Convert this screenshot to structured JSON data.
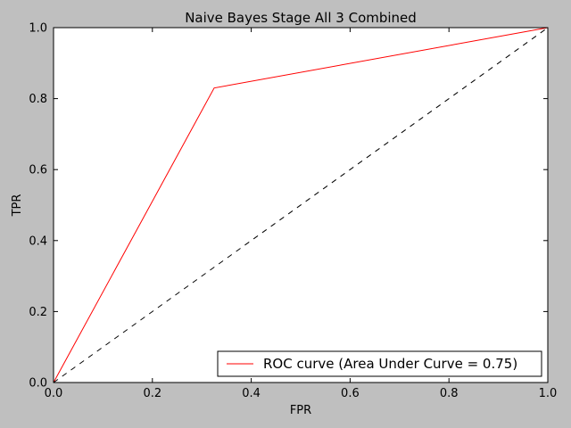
{
  "chart_data": {
    "type": "line",
    "title": "Naive Bayes Stage All 3 Combined",
    "xlabel": "FPR",
    "ylabel": "TPR",
    "xlim": [
      0,
      1
    ],
    "ylim": [
      0,
      1
    ],
    "xticks": [
      0.0,
      0.2,
      0.4,
      0.6,
      0.8,
      1.0
    ],
    "yticks": [
      0.0,
      0.2,
      0.4,
      0.6,
      0.8,
      1.0
    ],
    "xtick_labels": [
      "0.0",
      "0.2",
      "0.4",
      "0.6",
      "0.8",
      "1.0"
    ],
    "ytick_labels": [
      "0.0",
      "0.2",
      "0.4",
      "0.6",
      "0.8",
      "1.0"
    ],
    "grid": false,
    "legend_position": "lower-right",
    "series": [
      {
        "name": "ROC curve (Area Under Curve = 0.75)",
        "color": "#ff0000",
        "style": "solid",
        "x": [
          0.0,
          0.325,
          1.0
        ],
        "y": [
          0.0,
          0.83,
          1.0
        ]
      },
      {
        "color": "#000000",
        "style": "dashed",
        "x": [
          0.0,
          1.0
        ],
        "y": [
          0.0,
          1.0
        ]
      }
    ]
  }
}
